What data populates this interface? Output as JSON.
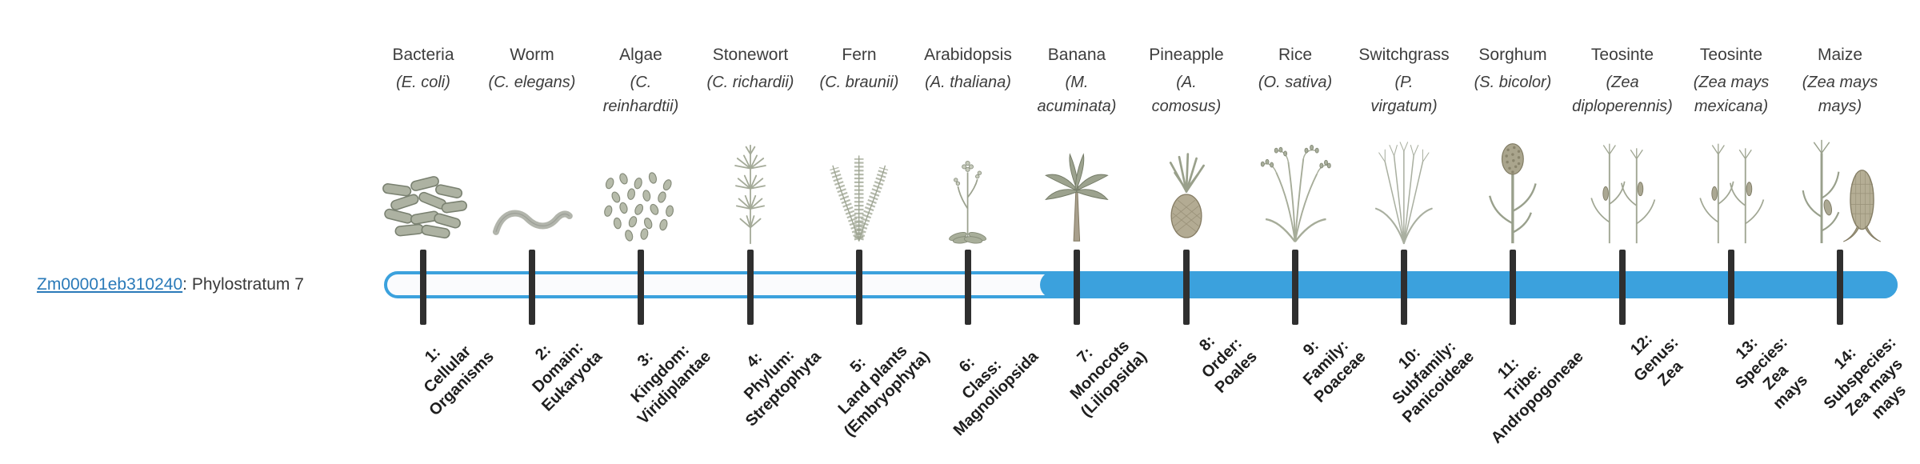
{
  "gene": {
    "id": "Zm00001eb310240",
    "label_suffix": ": Phylostratum 7"
  },
  "timeline": {
    "accent_color": "#3ba1dd",
    "tick_color": "#2f2f2f",
    "phylostratum": 7,
    "fill_start_stratum": 7,
    "num_strata": 14
  },
  "organisms": [
    {
      "name": "Bacteria",
      "sci": "(E. coli)",
      "icon": "bacteria-icon",
      "label": "1:\nCellular\nOrganisms"
    },
    {
      "name": "Worm",
      "sci": "(C. elegans)",
      "icon": "worm-icon",
      "label": "2:\nDomain:\nEukaryota"
    },
    {
      "name": "Algae",
      "sci": "(C.\nreinhardtii)",
      "icon": "algae-icon",
      "label": "3:\nKingdom:\nViridiplantae"
    },
    {
      "name": "Stonewort",
      "sci": "(C. richardii)",
      "icon": "stonewort-icon",
      "label": "4:\nPhylum:\nStreptophyta"
    },
    {
      "name": "Fern",
      "sci": "(C. braunii)",
      "icon": "fern-icon",
      "label": "5:\nLand plants\n(Embryophyta)"
    },
    {
      "name": "Arabidopsis",
      "sci": "(A. thaliana)",
      "icon": "arabidopsis-icon",
      "label": "6:\nClass:\nMagnoliopsida"
    },
    {
      "name": "Banana",
      "sci": "(M.\nacuminata)",
      "icon": "banana-icon",
      "label": "7:\nMonocots\n(Liliopsida)"
    },
    {
      "name": "Pineapple",
      "sci": "(A.\ncomosus)",
      "icon": "pineapple-icon",
      "label": "8:\nOrder:\nPoales"
    },
    {
      "name": "Rice",
      "sci": "(O. sativa)",
      "icon": "rice-icon",
      "label": "9:\nFamily:\nPoaceae"
    },
    {
      "name": "Switchgrass",
      "sci": "(P.\nvirgatum)",
      "icon": "switchgrass-icon",
      "label": "10:\nSubfamily:\nPanicoideae"
    },
    {
      "name": "Sorghum",
      "sci": "(S. bicolor)",
      "icon": "sorghum-icon",
      "label": "11:\nTribe:\nAndropogoneae"
    },
    {
      "name": "Teosinte",
      "sci": "(Zea\ndiploperennis)",
      "icon": "teosinte-icon",
      "label": "12:\nGenus:\nZea"
    },
    {
      "name": "Teosinte",
      "sci": "(Zea mays\nmexicana)",
      "icon": "teosinte-icon",
      "label": "13:\nSpecies:\nZea\nmays"
    },
    {
      "name": "Maize",
      "sci": "(Zea mays\nmays)",
      "icon": "maize-icon",
      "label": "14:\nSubspecies:\nZea mays\nmays"
    }
  ]
}
